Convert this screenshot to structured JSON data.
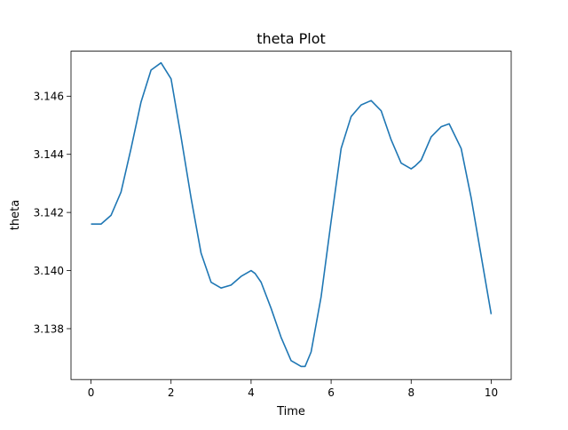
{
  "chart_data": {
    "type": "line",
    "title": "theta Plot",
    "xlabel": "Time",
    "ylabel": "theta",
    "xlim": [
      -0.5,
      10.5
    ],
    "ylim": [
      3.13625,
      3.14755
    ],
    "xticks": [
      0,
      2,
      4,
      6,
      8,
      10
    ],
    "xtick_labels": [
      "0",
      "2",
      "4",
      "6",
      "8",
      "10"
    ],
    "yticks": [
      3.138,
      3.14,
      3.142,
      3.144,
      3.146
    ],
    "ytick_labels": [
      "3.138",
      "3.140",
      "3.142",
      "3.144",
      "3.146"
    ],
    "grid": false,
    "line_color": "#1f77b4",
    "series": [
      {
        "x": [
          0.0,
          0.25,
          0.5,
          0.75,
          1.0,
          1.25,
          1.5,
          1.75,
          2.0,
          2.25,
          2.5,
          2.75,
          3.0,
          3.25,
          3.5,
          3.75,
          4.0,
          4.1,
          4.25,
          4.5,
          4.75,
          5.0,
          5.25,
          5.35,
          5.5,
          5.75,
          6.0,
          6.25,
          6.5,
          6.75,
          7.0,
          7.25,
          7.5,
          7.75,
          8.0,
          8.1,
          8.25,
          8.5,
          8.75,
          8.95,
          9.25,
          9.5,
          9.75,
          10.0
        ],
        "y": [
          3.1416,
          3.1416,
          3.1419,
          3.1427,
          3.1442,
          3.1458,
          3.1469,
          3.14715,
          3.1466,
          3.1446,
          3.1425,
          3.1406,
          3.1396,
          3.1394,
          3.1395,
          3.1398,
          3.14,
          3.1399,
          3.1396,
          3.1387,
          3.1377,
          3.1369,
          3.1367,
          3.1367,
          3.1372,
          3.1391,
          3.1417,
          3.1442,
          3.1453,
          3.1457,
          3.14585,
          3.1455,
          3.1445,
          3.1437,
          3.1435,
          3.1436,
          3.1438,
          3.1446,
          3.14495,
          3.14505,
          3.1442,
          3.1425,
          3.1405,
          3.1385
        ]
      }
    ]
  }
}
